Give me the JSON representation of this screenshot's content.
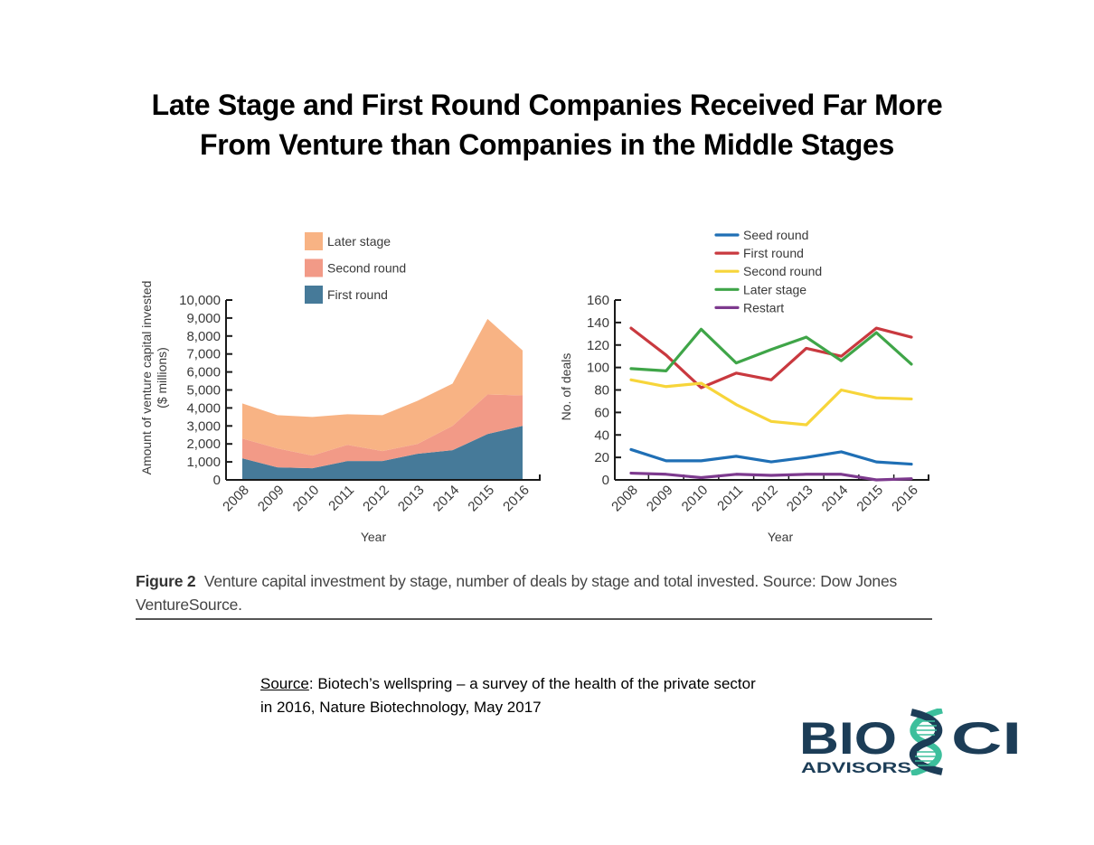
{
  "title": {
    "line1": "Late Stage and First Round Companies Received Far More",
    "line2": "From Venture than Companies in the Middle Stages"
  },
  "chart_data": [
    {
      "type": "area",
      "stacked": true,
      "title": "",
      "xlabel": "Year",
      "ylabel": "Amount of venture capital invested",
      "ylabel2": "($ millions)",
      "categories": [
        "2008",
        "2009",
        "2010",
        "2011",
        "2012",
        "2013",
        "2014",
        "2015",
        "2016"
      ],
      "ylim": [
        0,
        10000
      ],
      "yticks": [
        0,
        1000,
        2000,
        3000,
        4000,
        5000,
        6000,
        7000,
        8000,
        9000,
        10000
      ],
      "ytick_labels": [
        "0",
        "1,000",
        "2,000",
        "3,000",
        "4,000",
        "5,000",
        "6,000",
        "7,000",
        "8,000",
        "9,000",
        "10,000"
      ],
      "legend_position": "top",
      "series": [
        {
          "name": "First round",
          "color": "#467a99",
          "values": [
            1200,
            700,
            650,
            1050,
            1050,
            1450,
            1650,
            2550,
            3000
          ]
        },
        {
          "name": "Second round",
          "color": "#f29a87",
          "values": [
            1100,
            1050,
            700,
            900,
            550,
            550,
            1350,
            2200,
            1700
          ]
        },
        {
          "name": "Later stage",
          "color": "#f8b384",
          "values": [
            1950,
            1850,
            2150,
            1700,
            2000,
            2400,
            2350,
            4200,
            2500
          ]
        }
      ],
      "legend_order": [
        "Later stage",
        "Second round",
        "First round"
      ]
    },
    {
      "type": "line",
      "title": "",
      "xlabel": "Year",
      "ylabel": "No. of deals",
      "categories": [
        "2008",
        "2009",
        "2010",
        "2011",
        "2012",
        "2013",
        "2014",
        "2015",
        "2016"
      ],
      "ylim": [
        0,
        160
      ],
      "yticks": [
        0,
        20,
        40,
        60,
        80,
        100,
        120,
        140,
        160
      ],
      "ytick_labels": [
        "0",
        "20",
        "40",
        "60",
        "80",
        "100",
        "120",
        "140",
        "160"
      ],
      "legend_position": "top",
      "series": [
        {
          "name": "Seed round",
          "color": "#1f6fb5",
          "values": [
            27,
            17,
            17,
            21,
            16,
            20,
            25,
            16,
            14
          ]
        },
        {
          "name": "First round",
          "color": "#c9393f",
          "values": [
            135,
            111,
            82,
            95,
            89,
            117,
            110,
            135,
            127
          ]
        },
        {
          "name": "Second round",
          "color": "#f7d53a",
          "values": [
            89,
            83,
            86,
            67,
            52,
            49,
            80,
            73,
            72
          ]
        },
        {
          "name": "Later stage",
          "color": "#3fa548",
          "values": [
            99,
            97,
            134,
            104,
            116,
            127,
            106,
            131,
            103
          ]
        },
        {
          "name": "Restart",
          "color": "#7d3a8e",
          "values": [
            6,
            5,
            2,
            5,
            4,
            5,
            5,
            0,
            1
          ]
        }
      ]
    }
  ],
  "caption": {
    "figure_label": "Figure 2",
    "text": "Venture capital investment by stage, number of deals by stage and total invested. Source: Dow Jones VentureSource."
  },
  "source": {
    "label": "Source",
    "text": ":   Biotech’s wellspring – a survey of the health of the private sector in 2016, Nature Biotechnology, May 2017"
  },
  "logo": {
    "name_part1": "BIO",
    "name_part2": "CI",
    "subtitle": "ADVISORS",
    "navy": "#1c3d57",
    "teal": "#3dbf9c"
  }
}
